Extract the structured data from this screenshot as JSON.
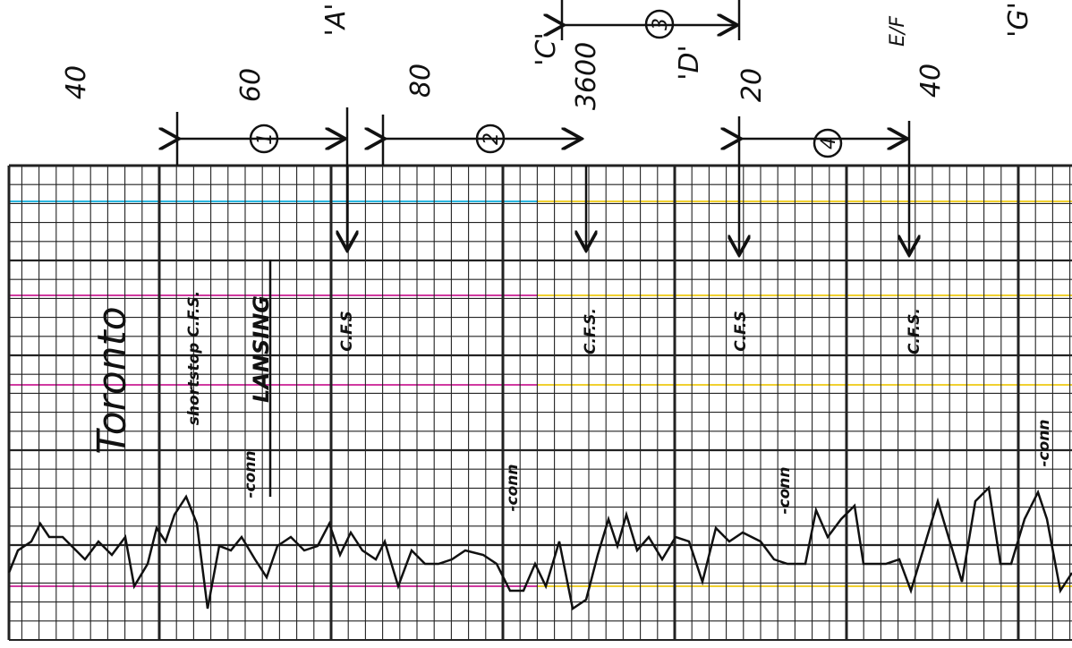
{
  "top_labels": {
    "scale": [
      "40",
      "60",
      "80",
      "3600",
      "20",
      "40"
    ],
    "letters": [
      "'A'",
      "'C'",
      "'D'",
      "E/F",
      "'G'"
    ],
    "segments": [
      "1",
      "2",
      "3",
      "4"
    ]
  },
  "annotations": [
    "Toronto",
    "shortstop C.F.S.",
    "-conn",
    "LANSING",
    "C.F.S",
    "C.F.S.",
    "C.F.S",
    "C.F.S.",
    "-conn",
    "-conn",
    "-conn"
  ]
}
